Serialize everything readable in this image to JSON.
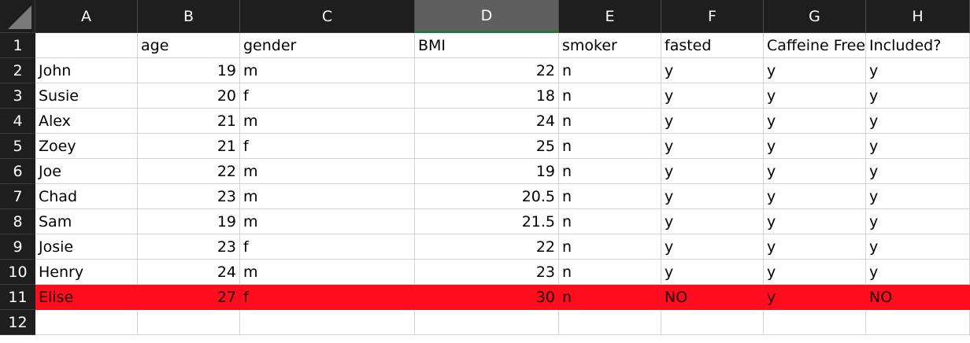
{
  "columns": [
    "A",
    "B",
    "C",
    "D",
    "E",
    "F",
    "G",
    "H"
  ],
  "selected_column": "D",
  "rows": [
    {
      "n": "1",
      "cells": [
        "",
        "age",
        "gender",
        "BMI",
        "smoker",
        "fasted",
        "Caffeine Free",
        "Included?"
      ]
    },
    {
      "n": "2",
      "cells": [
        "John",
        "19",
        "m",
        "22",
        "n",
        "y",
        "y",
        "y"
      ]
    },
    {
      "n": "3",
      "cells": [
        "Susie",
        "20",
        "f",
        "18",
        "n",
        "y",
        "y",
        "y"
      ]
    },
    {
      "n": "4",
      "cells": [
        "Alex",
        "21",
        "m",
        "24",
        "n",
        "y",
        "y",
        "y"
      ]
    },
    {
      "n": "5",
      "cells": [
        "Zoey",
        "21",
        "f",
        "25",
        "n",
        "y",
        "y",
        "y"
      ]
    },
    {
      "n": "6",
      "cells": [
        "Joe",
        "22",
        "m",
        "19",
        "n",
        "y",
        "y",
        "y"
      ]
    },
    {
      "n": "7",
      "cells": [
        "Chad",
        "23",
        "m",
        "20.5",
        "n",
        "y",
        "y",
        "y"
      ]
    },
    {
      "n": "8",
      "cells": [
        "Sam",
        "19",
        "m",
        "21.5",
        "n",
        "y",
        "y",
        "y"
      ]
    },
    {
      "n": "9",
      "cells": [
        "Josie",
        "23",
        "f",
        "22",
        "n",
        "y",
        "y",
        "y"
      ]
    },
    {
      "n": "10",
      "cells": [
        "Henry",
        "24",
        "m",
        "23",
        "n",
        "y",
        "y",
        "y"
      ]
    },
    {
      "n": "11",
      "cells": [
        "Elise",
        "27",
        "f",
        "30",
        "n",
        "NO",
        "y",
        "NO"
      ],
      "highlight": true
    },
    {
      "n": "12",
      "cells": [
        "",
        "",
        "",
        "",
        "",
        "",
        "",
        ""
      ]
    }
  ],
  "colors": {
    "header_bg": "#1e1e1e",
    "highlight_row": "#ff0d1f",
    "selected_col_bar": "#1f7a3f"
  }
}
